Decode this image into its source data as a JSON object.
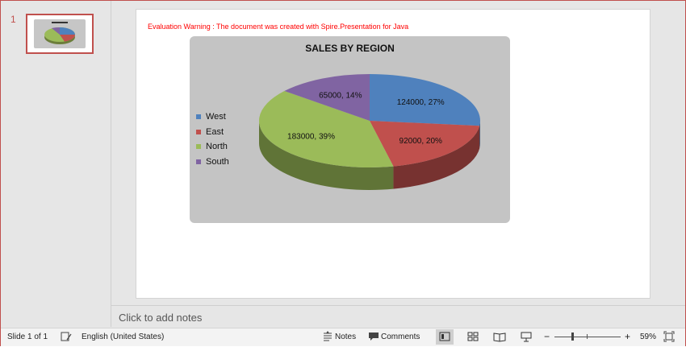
{
  "slides_pane": {
    "slide_number": "1"
  },
  "slide": {
    "eval_warning": "Evaluation Warning : The document was created with  Spire.Presentation for Java"
  },
  "chart_data": {
    "type": "pie",
    "title": "SALES BY REGION",
    "categories": [
      "West",
      "East",
      "North",
      "South"
    ],
    "values": [
      124000,
      92000,
      183000,
      65000
    ],
    "percents": [
      "27%",
      "20%",
      "39%",
      "14%"
    ],
    "data_labels": [
      "124000, 27%",
      "92000, 20%",
      "183000, 39%",
      "65000, 14%"
    ],
    "colors": [
      "#4f81bd",
      "#c0504d",
      "#9bbb59",
      "#8064a2"
    ],
    "legend_position": "left",
    "style": "3d"
  },
  "notes": {
    "placeholder": "Click to add notes"
  },
  "status_bar": {
    "slide_info": "Slide 1 of 1",
    "language": "English (United States)",
    "notes_label": "Notes",
    "comments_label": "Comments",
    "zoom": "59%",
    "zoom_fraction": 0.59
  }
}
